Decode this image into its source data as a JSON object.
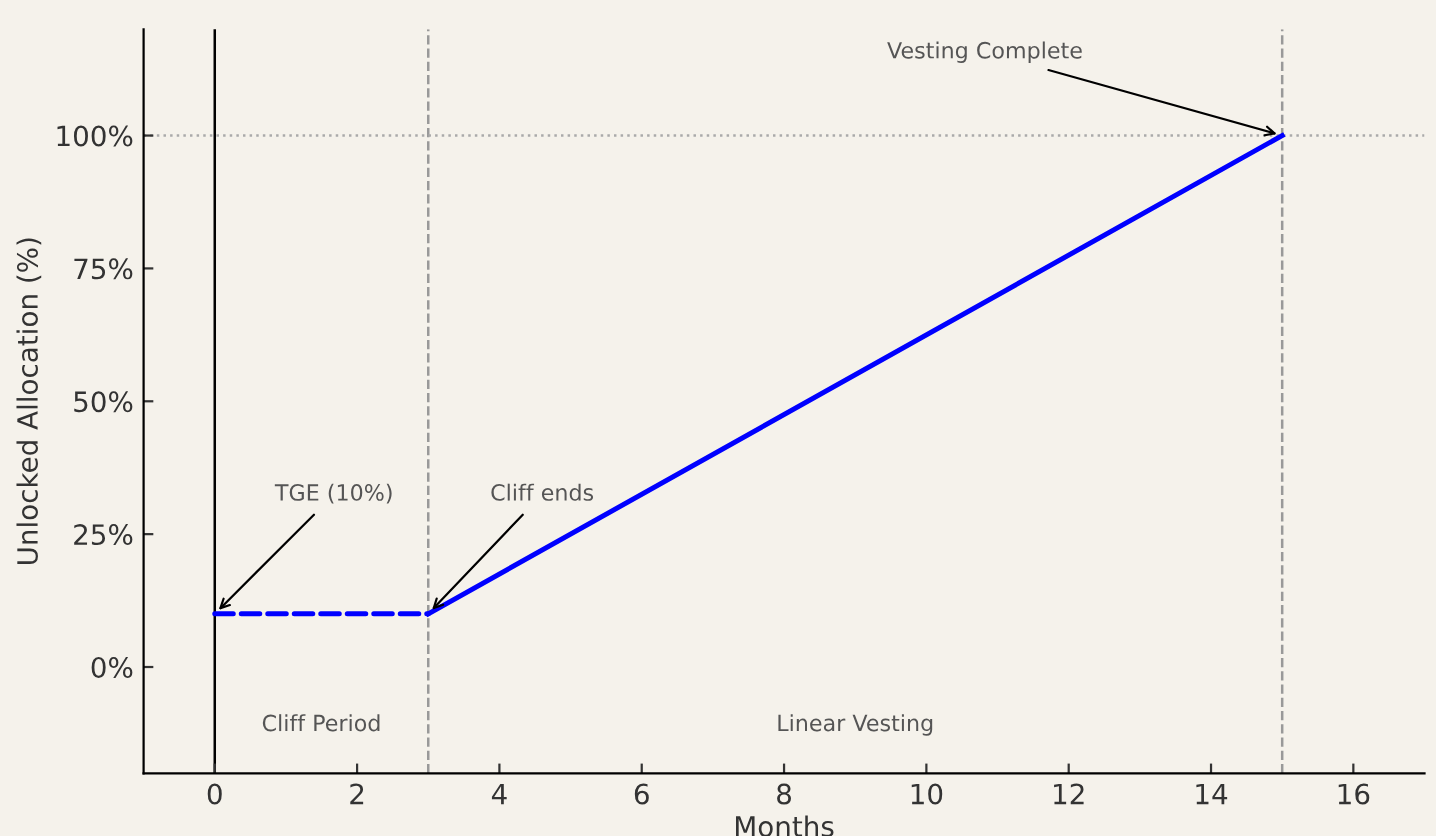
{
  "chart_data": {
    "type": "line",
    "xlabel": "Months",
    "ylabel": "Unlocked Allocation (%)",
    "xlim": [
      -1,
      17
    ],
    "xticks": [
      0,
      2,
      4,
      6,
      8,
      10,
      12,
      14,
      16
    ],
    "ylim": [
      -20,
      120
    ],
    "yticks": [
      {
        "value": 0,
        "label": "0%"
      },
      {
        "value": 25,
        "label": "25%"
      },
      {
        "value": 50,
        "label": "50%"
      },
      {
        "value": 75,
        "label": "75%"
      },
      {
        "value": 100,
        "label": "100%"
      }
    ],
    "series": [
      {
        "color": "#0000ff",
        "x": [
          0,
          3
        ],
        "values": [
          10,
          10
        ],
        "line_style": "dashed"
      },
      {
        "color": "#0000ff",
        "x": [
          3,
          15
        ],
        "values": [
          10,
          100
        ],
        "line_style": "solid"
      }
    ],
    "ref_lines": [
      {
        "axis": "x",
        "value": 0,
        "color": "#000000",
        "line_style": "solid"
      },
      {
        "axis": "x",
        "value": 3,
        "color": "#999999",
        "line_style": "dashed"
      },
      {
        "axis": "x",
        "value": 15,
        "color": "#999999",
        "line_style": "dashed"
      },
      {
        "axis": "y",
        "value": 100,
        "color": "#aaaaaa",
        "line_style": "dotted"
      }
    ],
    "annotations": [
      {
        "text": "TGE (10%)",
        "x": 0,
        "y": 10
      },
      {
        "text": "Cliff ends",
        "x": 3,
        "y": 10
      },
      {
        "text": "Vesting Complete",
        "x": 15,
        "y": 100
      },
      "Cliff Period",
      "Linear Vesting"
    ],
    "grid": false,
    "legend": false
  }
}
